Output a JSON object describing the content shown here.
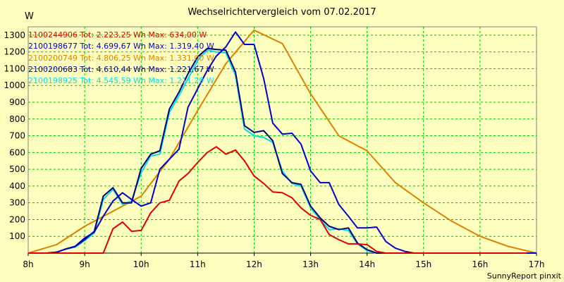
{
  "chart_data": {
    "type": "line",
    "title": "Wechselrichtervergleich vom 07.02.2017",
    "ylabel": "W",
    "xlabel": "",
    "footer": "SunnyReport pinxit",
    "ylim": [
      0,
      1350
    ],
    "yticks": [
      100,
      200,
      300,
      400,
      500,
      600,
      700,
      800,
      900,
      1000,
      1100,
      1200,
      1300
    ],
    "xlim": [
      8.0,
      17.0
    ],
    "xticks": [
      8,
      9,
      10,
      11,
      12,
      13,
      14,
      15,
      16,
      17
    ],
    "xtick_labels": [
      "8h",
      "9h",
      "10h",
      "11h",
      "12h",
      "13h",
      "14h",
      "15h",
      "16h",
      "17h"
    ],
    "grid": true,
    "legend_position": "top-left",
    "background": "#FFFFC0",
    "grid_color": "#00C000",
    "series": [
      {
        "name": "1100244906 Tot: 2.223,25 Wh Max: 634,00 W",
        "color": "#E00000",
        "x": [
          8.0,
          9.0,
          9.17,
          9.33,
          9.5,
          9.67,
          9.83,
          10.0,
          10.17,
          10.33,
          10.5,
          10.67,
          10.83,
          11.0,
          11.17,
          11.33,
          11.5,
          11.67,
          11.83,
          12.0,
          12.17,
          12.33,
          12.5,
          12.67,
          12.83,
          13.0,
          13.17,
          13.33,
          13.5,
          13.67,
          13.83,
          14.0,
          14.17,
          14.33,
          14.5,
          14.67,
          14.83,
          15.0,
          15.17,
          15.33,
          15.5,
          15.67,
          15.83,
          16.0,
          16.17,
          16.33,
          16.5,
          16.67,
          16.83
        ],
        "y": [
          0,
          0,
          0,
          0,
          145,
          185,
          130,
          135,
          240,
          300,
          315,
          430,
          475,
          540,
          600,
          634,
          590,
          615,
          550,
          460,
          415,
          365,
          360,
          330,
          270,
          225,
          200,
          110,
          80,
          55,
          55,
          50,
          10,
          0,
          0,
          0,
          0,
          0,
          0,
          0,
          0,
          0,
          0,
          0,
          0,
          0,
          0,
          0,
          0
        ]
      },
      {
        "name": "2100198677 Tot: 4.699,67 Wh Max: 1.319,40 W",
        "color": "#0000D0",
        "x": [
          8.0,
          8.17,
          8.33,
          8.5,
          8.67,
          8.83,
          9.0,
          9.17,
          9.33,
          9.5,
          9.67,
          9.83,
          10.0,
          10.17,
          10.33,
          10.5,
          10.67,
          10.83,
          11.0,
          11.17,
          11.33,
          11.5,
          11.67,
          11.83,
          12.0,
          12.17,
          12.33,
          12.5,
          12.67,
          12.83,
          13.0,
          13.17,
          13.33,
          13.5,
          13.67,
          13.83,
          14.0,
          14.17,
          14.33,
          14.5,
          14.67,
          14.83,
          15.0,
          15.17,
          15.33,
          15.5,
          15.67,
          15.83,
          16.0,
          16.17,
          16.33,
          16.5,
          16.67,
          16.83,
          17.0
        ],
        "y": [
          0,
          0,
          0,
          5,
          25,
          40,
          90,
          125,
          220,
          310,
          360,
          320,
          280,
          300,
          500,
          560,
          620,
          870,
          980,
          1090,
          1175,
          1230,
          1319,
          1245,
          1245,
          1040,
          775,
          710,
          715,
          650,
          490,
          420,
          420,
          290,
          220,
          150,
          150,
          155,
          70,
          30,
          10,
          0,
          0,
          0,
          0,
          0,
          0,
          0,
          0,
          0,
          0,
          0,
          0,
          0,
          0
        ]
      },
      {
        "name": "2100200749 Tot: 4.806,25 Wh Max: 1.331,00 W",
        "color": "#E08000",
        "x": [
          8.0,
          8.5,
          9.0,
          9.5,
          10.0,
          10.5,
          11.0,
          11.5,
          12.0,
          12.5,
          13.0,
          13.5,
          14.0,
          14.5,
          15.0,
          15.5,
          16.0,
          16.5,
          17.0
        ],
        "y": [
          0,
          50,
          160,
          250,
          340,
          560,
          850,
          1130,
          1330,
          1250,
          950,
          700,
          610,
          420,
          300,
          190,
          100,
          40,
          0
        ]
      },
      {
        "name": "2100200683 Tot: 4.610,44 Wh Max: 1.221,67 W",
        "color": "#000080",
        "x": [
          8.0,
          8.17,
          8.33,
          8.5,
          8.67,
          8.83,
          9.0,
          9.17,
          9.33,
          9.5,
          9.67,
          9.83,
          10.0,
          10.17,
          10.33,
          10.5,
          10.67,
          10.83,
          11.0,
          11.17,
          11.33,
          11.5,
          11.67,
          11.83,
          12.0,
          12.17,
          12.33,
          12.5,
          12.67,
          12.83,
          13.0,
          13.17,
          13.33,
          13.5,
          13.67,
          13.83,
          14.0,
          14.17,
          14.33,
          14.5,
          14.67,
          14.83,
          15.0,
          15.17,
          15.33,
          15.5,
          15.67,
          15.83,
          16.0,
          16.17,
          16.33,
          16.5,
          16.67,
          16.83,
          17.0
        ],
        "y": [
          0,
          0,
          0,
          5,
          25,
          40,
          80,
          130,
          340,
          390,
          300,
          300,
          505,
          590,
          610,
          860,
          960,
          1070,
          1170,
          1221,
          1215,
          1210,
          1080,
          760,
          720,
          730,
          670,
          475,
          420,
          410,
          280,
          210,
          160,
          140,
          150,
          60,
          20,
          0,
          0,
          0,
          0,
          0,
          0,
          0,
          0,
          0,
          0,
          0,
          0,
          0,
          0,
          0,
          0,
          0,
          0
        ]
      },
      {
        "name": "2100198925 Tot: 4.545,59 Wh Max: 1.211,29 W",
        "color": "#00E0E0",
        "x": [
          8.0,
          8.17,
          8.33,
          8.5,
          8.67,
          8.83,
          9.0,
          9.17,
          9.33,
          9.5,
          9.67,
          9.83,
          10.0,
          10.17,
          10.33,
          10.5,
          10.67,
          10.83,
          11.0,
          11.17,
          11.33,
          11.5,
          11.67,
          11.83,
          12.0,
          12.17,
          12.33,
          12.5,
          12.67,
          12.83,
          13.0,
          13.17,
          13.33,
          13.5,
          13.67,
          13.83,
          14.0,
          14.17,
          14.33,
          14.5,
          14.67,
          14.83,
          15.0,
          15.17,
          15.33,
          15.5,
          15.67,
          15.83,
          16.0,
          16.17,
          16.33,
          16.5,
          16.67,
          16.83,
          17.0
        ],
        "y": [
          0,
          0,
          0,
          5,
          25,
          35,
          75,
          120,
          320,
          380,
          290,
          310,
          480,
          580,
          590,
          840,
          940,
          1040,
          1150,
          1211,
          1200,
          1195,
          1060,
          740,
          700,
          690,
          660,
          490,
          415,
          400,
          270,
          200,
          140,
          145,
          135,
          55,
          15,
          0,
          0,
          0,
          0,
          0,
          0,
          0,
          0,
          0,
          0,
          0,
          0,
          0,
          0,
          0,
          0,
          0,
          0
        ]
      }
    ]
  }
}
